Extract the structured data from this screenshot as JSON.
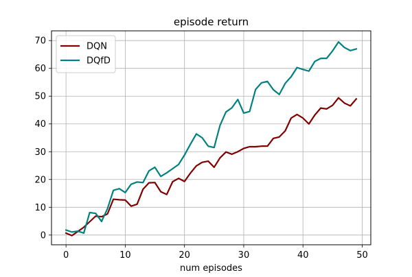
{
  "chart_data": {
    "type": "line",
    "title": "episode return",
    "xlabel": "num episodes",
    "ylabel": "",
    "xlim": [
      -2.45,
      51.45
    ],
    "ylim": [
      -3.5,
      73.5
    ],
    "xticks": [
      0,
      10,
      20,
      30,
      40,
      50
    ],
    "yticks": [
      0,
      10,
      20,
      30,
      40,
      50,
      60,
      70
    ],
    "grid": true,
    "legend_position": "top-left",
    "x": [
      0,
      1,
      2,
      3,
      4,
      5,
      6,
      7,
      8,
      9,
      10,
      11,
      12,
      13,
      14,
      15,
      16,
      17,
      18,
      19,
      20,
      21,
      22,
      23,
      24,
      25,
      26,
      27,
      28,
      29,
      30,
      31,
      32,
      33,
      34,
      35,
      36,
      37,
      38,
      39,
      40,
      41,
      42,
      43,
      44,
      45,
      46,
      47,
      48,
      49
    ],
    "series": [
      {
        "name": "DQN",
        "color": "#800000",
        "values": [
          0.7,
          -0.2,
          1.3,
          2.8,
          4.8,
          6.8,
          6.6,
          7.6,
          12.9,
          12.7,
          12.6,
          10.4,
          11.1,
          16.5,
          18.8,
          18.9,
          15.6,
          14.6,
          19.2,
          20.4,
          19.3,
          22.3,
          24.9,
          26.2,
          26.6,
          24.4,
          27.8,
          29.9,
          29.1,
          30.0,
          31.2,
          31.8,
          31.8,
          32.0,
          32.0,
          34.8,
          35.3,
          37.5,
          42.1,
          43.4,
          42.1,
          40.0,
          43.2,
          45.7,
          45.4,
          46.7,
          49.4,
          47.5,
          46.5,
          49.0
        ]
      },
      {
        "name": "DQfD",
        "color": "#008080",
        "values": [
          1.8,
          1.1,
          1.4,
          0.7,
          8.1,
          7.8,
          4.9,
          9.5,
          16.1,
          16.7,
          15.3,
          18.3,
          19.1,
          18.9,
          23.1,
          24.4,
          21.1,
          22.4,
          23.9,
          25.4,
          28.8,
          32.7,
          36.4,
          35.0,
          32.0,
          31.5,
          39.5,
          44.3,
          45.8,
          48.8,
          43.9,
          44.5,
          52.4,
          54.8,
          55.3,
          52.3,
          50.6,
          54.6,
          57.0,
          60.3,
          59.6,
          59.0,
          62.5,
          63.6,
          63.6,
          66.3,
          69.5,
          67.5,
          66.4,
          67.0
        ]
      }
    ]
  }
}
